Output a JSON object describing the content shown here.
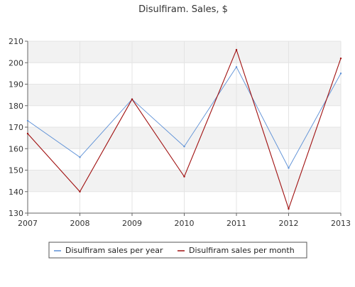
{
  "chart_data": {
    "type": "line",
    "title": "Disulfiram. Sales, $",
    "xlabel": "",
    "ylabel": "",
    "x": [
      "2007",
      "2008",
      "2009",
      "2010",
      "2011",
      "2012",
      "2013"
    ],
    "ylim": [
      130,
      210
    ],
    "yticks": [
      130,
      140,
      150,
      160,
      170,
      180,
      190,
      200,
      210
    ],
    "grid": true,
    "legend_position": "bottom",
    "series": [
      {
        "name": "Disulfiram sales per year",
        "color": "#5b8fd6",
        "values": [
          173,
          156,
          183,
          161,
          198,
          151,
          195
        ]
      },
      {
        "name": "Disulfiram sales per month",
        "color": "#a01010",
        "values": [
          167,
          140,
          183,
          147,
          206,
          132,
          202
        ]
      }
    ]
  }
}
